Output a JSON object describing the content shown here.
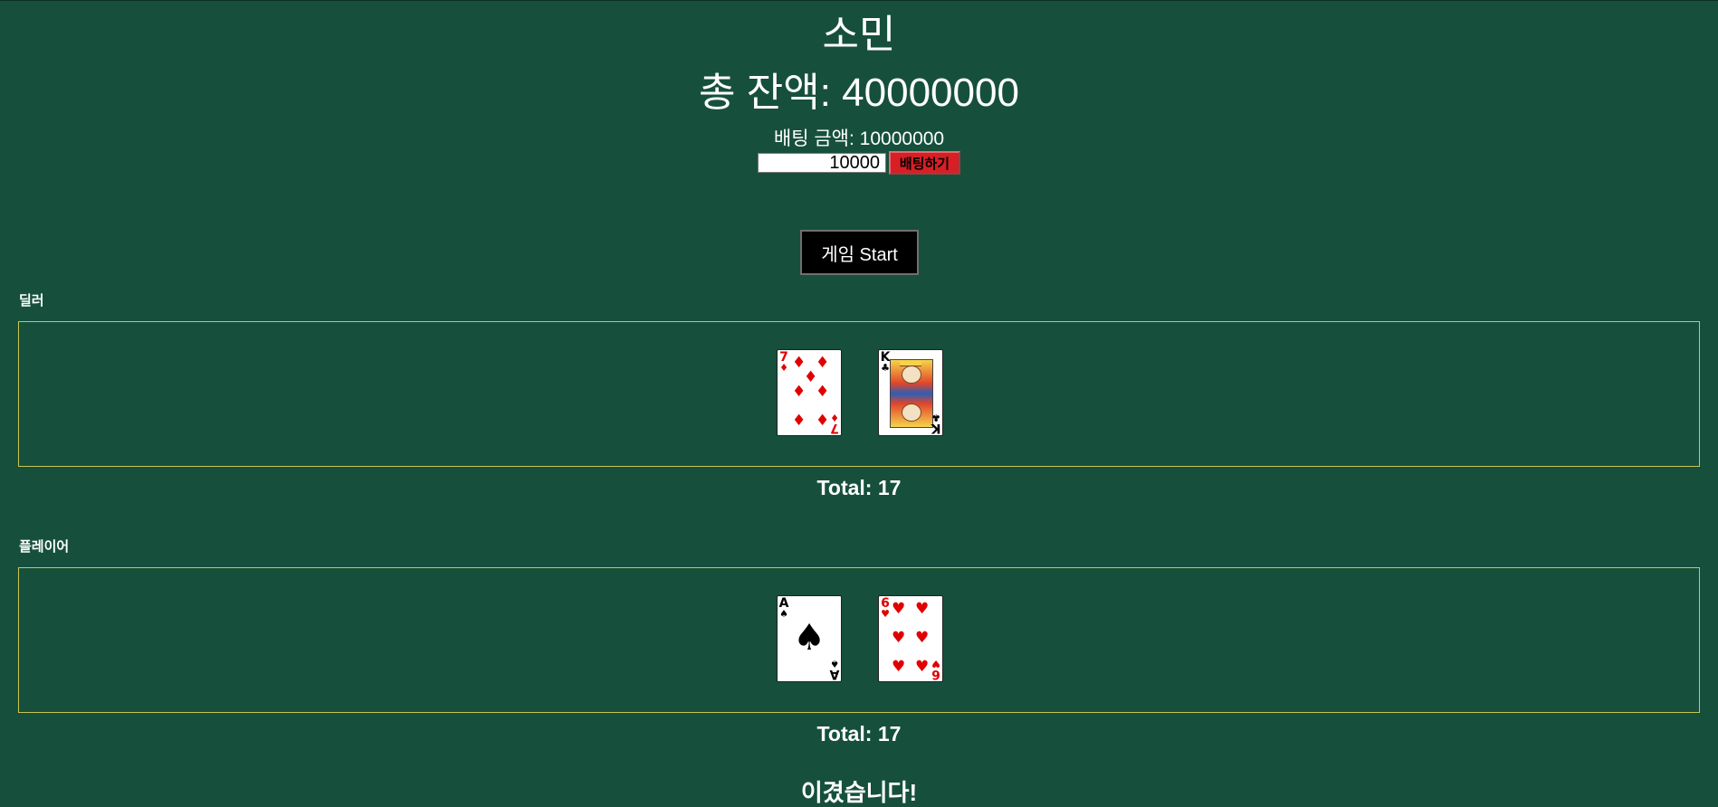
{
  "header": {
    "player_name": "소민",
    "balance_label": "총 잔액: ",
    "balance_value": "40000000",
    "bet_label": "배팅 금액: ",
    "bet_value": "10000000"
  },
  "bet_form": {
    "input_value": "10000",
    "button_label": "배팅하기"
  },
  "start_button": {
    "label": "게임 Start"
  },
  "dealer": {
    "label": "딜러",
    "cards": [
      {
        "rank": "7",
        "suit": "♦",
        "color": "#e00000"
      },
      {
        "rank": "K",
        "suit": "♣",
        "color": "#000000"
      }
    ],
    "total_label": "Total: ",
    "total_value": "17"
  },
  "player": {
    "label": "플레이어",
    "cards": [
      {
        "rank": "A",
        "suit": "♠",
        "color": "#000000"
      },
      {
        "rank": "6",
        "suit": "♥",
        "color": "#e00000"
      }
    ],
    "total_label": "Total: ",
    "total_value": "17"
  },
  "result": {
    "message": "이겼습니다!"
  },
  "colors": {
    "table_green": "#16503d",
    "bet_button_red": "#d81f26",
    "hand_border": "#c9c552"
  }
}
